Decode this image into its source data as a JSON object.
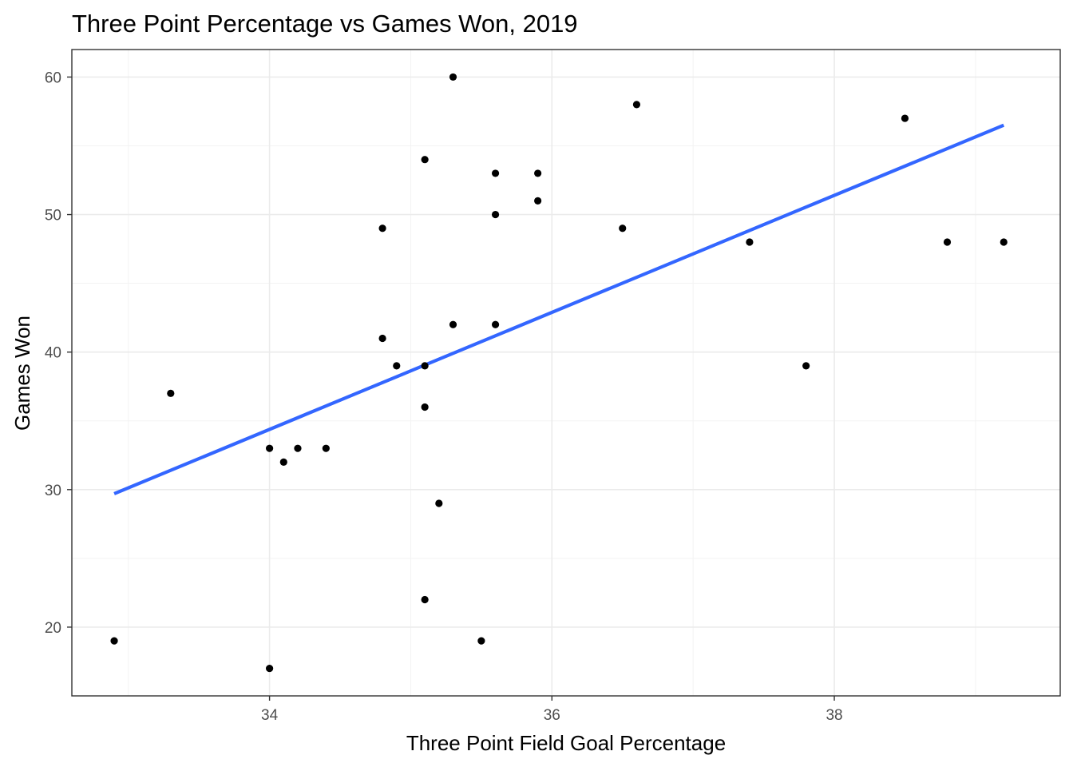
{
  "chart_data": {
    "type": "scatter",
    "title": "Three Point Percentage vs Games Won, 2019",
    "xlabel": "Three Point Field Goal Percentage",
    "ylabel": "Games Won",
    "xlim": [
      32.6,
      39.6
    ],
    "ylim": [
      15,
      62
    ],
    "x_ticks": [
      34,
      36,
      38
    ],
    "y_ticks": [
      20,
      30,
      40,
      50,
      60
    ],
    "x_tick_labels": [
      "34",
      "36",
      "38"
    ],
    "y_tick_labels": [
      "20",
      "30",
      "40",
      "50",
      "60"
    ],
    "grid": true,
    "points": [
      {
        "x": 32.9,
        "y": 19
      },
      {
        "x": 33.3,
        "y": 37
      },
      {
        "x": 34.0,
        "y": 33
      },
      {
        "x": 34.0,
        "y": 17
      },
      {
        "x": 34.1,
        "y": 32
      },
      {
        "x": 34.2,
        "y": 33
      },
      {
        "x": 34.4,
        "y": 33
      },
      {
        "x": 34.8,
        "y": 49
      },
      {
        "x": 34.8,
        "y": 41
      },
      {
        "x": 34.9,
        "y": 39
      },
      {
        "x": 35.1,
        "y": 54
      },
      {
        "x": 35.1,
        "y": 39
      },
      {
        "x": 35.1,
        "y": 36
      },
      {
        "x": 35.1,
        "y": 22
      },
      {
        "x": 35.2,
        "y": 29
      },
      {
        "x": 35.3,
        "y": 60
      },
      {
        "x": 35.3,
        "y": 42
      },
      {
        "x": 35.5,
        "y": 19
      },
      {
        "x": 35.6,
        "y": 53
      },
      {
        "x": 35.6,
        "y": 50
      },
      {
        "x": 35.6,
        "y": 42
      },
      {
        "x": 35.9,
        "y": 53
      },
      {
        "x": 35.9,
        "y": 51
      },
      {
        "x": 36.5,
        "y": 49
      },
      {
        "x": 36.6,
        "y": 58
      },
      {
        "x": 37.4,
        "y": 48
      },
      {
        "x": 37.8,
        "y": 39
      },
      {
        "x": 38.5,
        "y": 57
      },
      {
        "x": 38.8,
        "y": 48
      },
      {
        "x": 39.2,
        "y": 48
      }
    ],
    "trend_line": {
      "x_start": 32.9,
      "y_start": 29.7,
      "x_end": 39.2,
      "y_end": 56.5
    },
    "colors": {
      "points": "#000000",
      "trend": "#3366FF",
      "grid_major": "#ebebeb",
      "grid_minor": "#f3f3f3",
      "panel_border": "#333333"
    }
  }
}
